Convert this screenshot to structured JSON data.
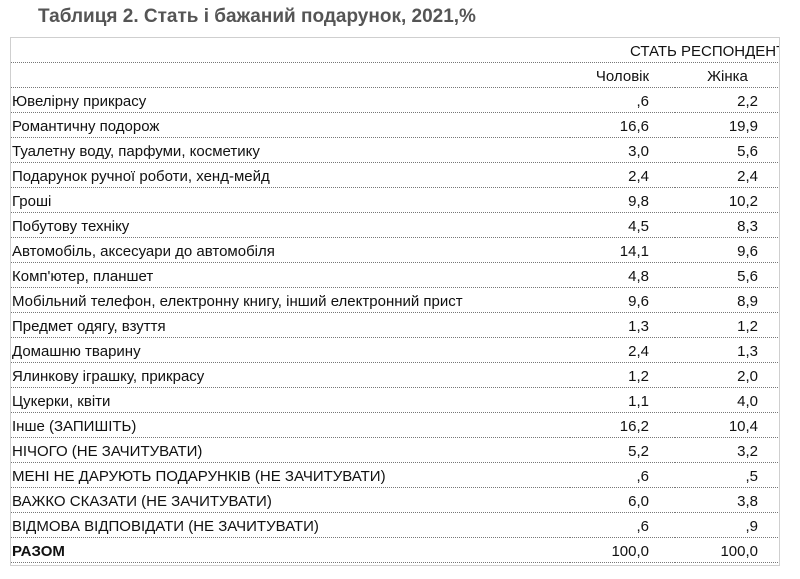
{
  "title": "Таблиця 2.  Стать і бажаний подарунок, 2021,%",
  "table": {
    "group_header": "СТАТЬ РЕСПОНДЕНТА",
    "columns": [
      "Чоловік",
      "Жінка"
    ],
    "rows": [
      {
        "label": "Ювелірну прикрасу",
        "male": ",6",
        "female": "2,2"
      },
      {
        "label": "Романтичну подорож",
        "male": "16,6",
        "female": "19,9"
      },
      {
        "label": "Туалетну воду, парфуми, косметику",
        "male": "3,0",
        "female": "5,6"
      },
      {
        "label": "Подарунок ручної роботи, хенд-мейд",
        "male": "2,4",
        "female": "2,4"
      },
      {
        "label": "Гроші",
        "male": "9,8",
        "female": "10,2"
      },
      {
        "label": "Побутову техніку",
        "male": "4,5",
        "female": "8,3"
      },
      {
        "label": "Автомобіль, аксесуари до автомобіля",
        "male": "14,1",
        "female": "9,6"
      },
      {
        "label": "Комп'ютер, планшет",
        "male": "4,8",
        "female": "5,6"
      },
      {
        "label": "Мобільний телефон, електронну книгу, інший електронний прист",
        "male": "9,6",
        "female": "8,9"
      },
      {
        "label": "Предмет одягу, взуття",
        "male": "1,3",
        "female": "1,2"
      },
      {
        "label": "Домашню тварину",
        "male": "2,4",
        "female": "1,3"
      },
      {
        "label": "Ялинкову іграшку, прикрасу",
        "male": "1,2",
        "female": "2,0"
      },
      {
        "label": "Цукерки, квіти",
        "male": "1,1",
        "female": "4,0"
      },
      {
        "label": "Інше (ЗАПИШІТЬ)",
        "male": "16,2",
        "female": "10,4"
      },
      {
        "label": "НІЧОГО (НЕ ЗАЧИТУВАТИ)",
        "male": "5,2",
        "female": "3,2"
      },
      {
        "label": "МЕНІ НЕ ДАРУЮТЬ ПОДАРУНКІВ (НЕ ЗАЧИТУВАТИ)",
        "male": ",6",
        "female": ",5"
      },
      {
        "label": "ВАЖКО СКАЗАТИ (НЕ ЗАЧИТУВАТИ)",
        "male": "6,0",
        "female": "3,8"
      },
      {
        "label": "ВІДМОВА ВІДПОВІДАТИ (НЕ ЗАЧИТУВАТИ)",
        "male": ",6",
        "female": ",9"
      }
    ],
    "total": {
      "label": "РАЗОМ",
      "male": "100,0",
      "female": "100,0"
    }
  }
}
